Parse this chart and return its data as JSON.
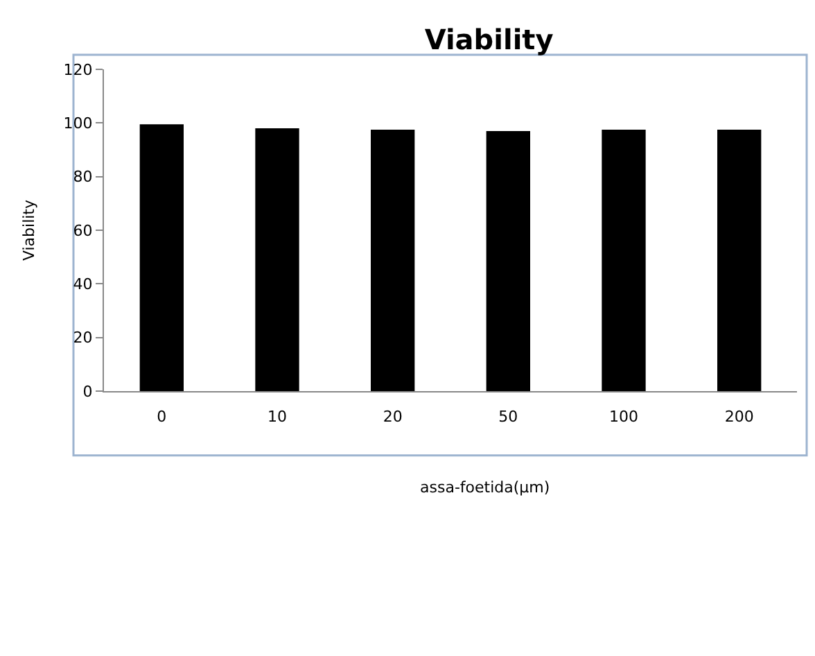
{
  "chart_data": {
    "type": "bar",
    "title": "Viability",
    "xlabel": "assa-foetida(µm)",
    "ylabel": "Viability",
    "categories": [
      "0",
      "10",
      "20",
      "50",
      "100",
      "200"
    ],
    "values": [
      99.5,
      98,
      97.5,
      97,
      97.5,
      97.5
    ],
    "color": "#000000",
    "ylim": [
      0,
      120
    ],
    "yticks": [
      0,
      20,
      40,
      60,
      80,
      100,
      120
    ],
    "grid": false,
    "legend": false
  }
}
